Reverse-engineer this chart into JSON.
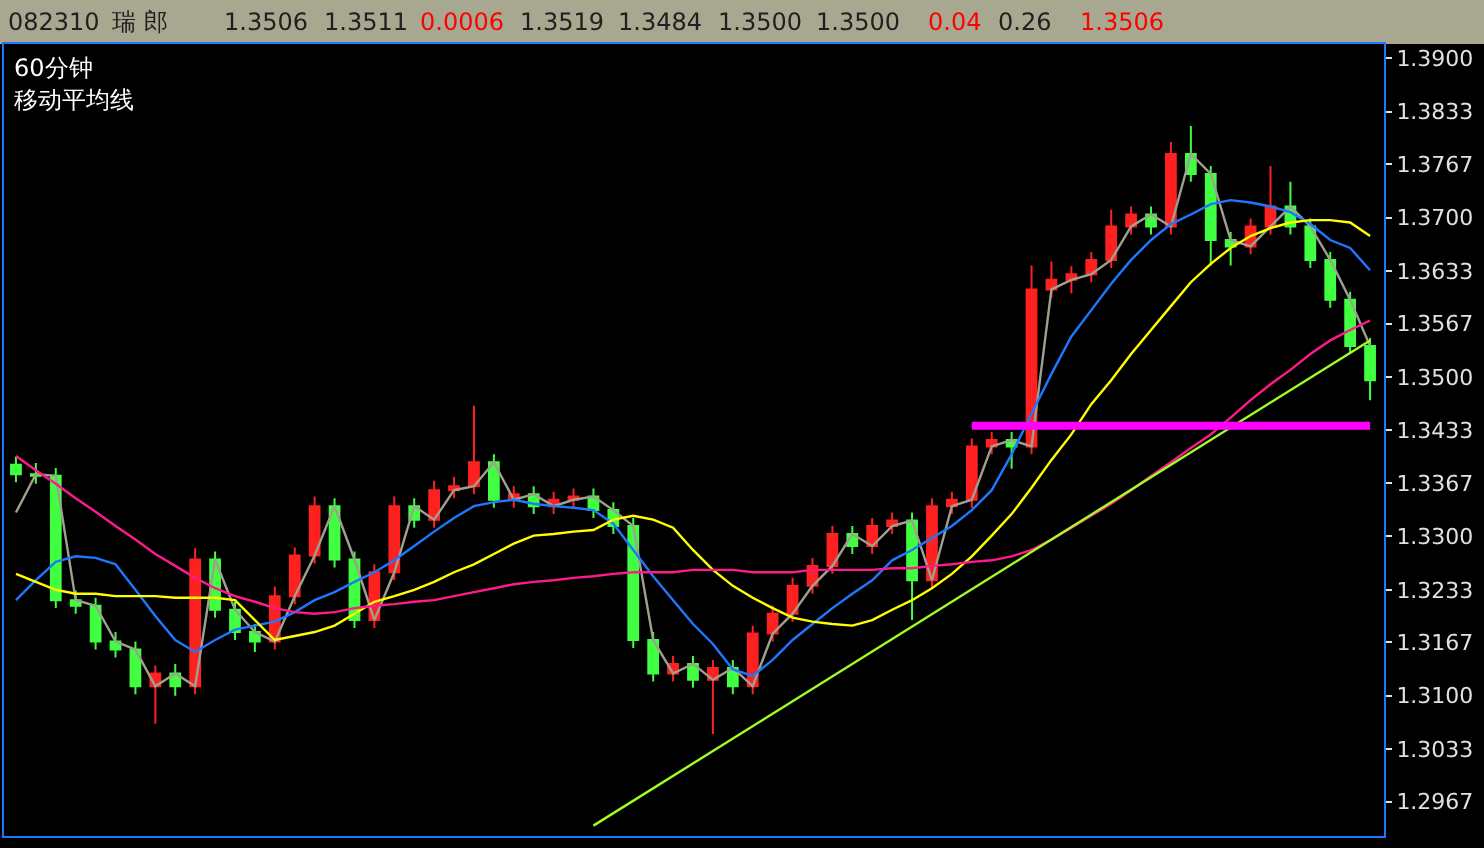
{
  "chart_data": {
    "type": "candlestick",
    "title": "60分钟",
    "subtitle": "移动平均线",
    "annotations": [
      "082310",
      "瑞 郎",
      "1.3506",
      "1.3511",
      "0.0006",
      "1.3519",
      "1.3484",
      "1.3500",
      "1.3500",
      "0.04",
      "0.26",
      "1.3506"
    ],
    "categories": [
      null,
      null,
      null,
      null,
      null,
      null,
      null,
      null,
      null,
      null,
      null,
      null,
      null,
      null,
      null,
      null,
      null,
      null,
      null,
      null,
      null,
      null,
      null,
      null,
      null,
      null,
      null,
      null,
      null,
      null,
      null,
      null,
      null,
      null,
      null,
      null,
      null,
      null,
      null,
      null,
      null,
      null,
      null,
      null,
      null,
      null,
      null,
      null,
      null,
      null,
      null,
      null,
      null,
      null,
      null,
      null,
      null,
      null,
      null,
      null,
      null,
      null,
      null,
      null,
      null,
      null,
      null,
      null,
      null
    ],
    "colors": [
      "#40ff40",
      "#40ff40",
      "#40ff40",
      "#40ff40",
      "#40ff40",
      "#40ff40",
      "#40ff40",
      "#ff2020",
      "#40ff40",
      "#ff2020",
      "#40ff40",
      "#40ff40",
      "#40ff40",
      "#ff2020",
      "#ff2020",
      "#ff2020",
      "#40ff40",
      "#40ff40",
      "#ff2020",
      "#ff2020",
      "#40ff40",
      "#ff2020",
      "#ff2020",
      "#ff2020",
      "#40ff40",
      "#ff2020",
      "#40ff40",
      "#ff2020",
      "#ff2020",
      "#40ff40",
      "#40ff40",
      "#40ff40",
      "#40ff40",
      "#ff2020",
      "#40ff40",
      "#ff2020",
      "#40ff40",
      "#ff2020",
      "#ff2020",
      "#ff2020",
      "#ff2020",
      "#ff2020",
      "#40ff40",
      "#ff2020",
      "#ff2020",
      "#40ff40",
      "#ff2020",
      "#ff2020",
      "#ff2020",
      "#ff2020",
      "#40ff40",
      "#ff2020",
      "#ff2020",
      "#ff2020",
      "#ff2020",
      "#ff2020",
      "#ff2020",
      "#40ff40",
      "#ff2020",
      "#40ff40",
      "#40ff40",
      "#40ff40",
      "#ff2020",
      "#ff2020",
      "#40ff40",
      "#40ff40",
      "#40ff40",
      "#40ff40",
      "#40ff40"
    ],
    "ohlc": [
      [
        1.339,
        1.34,
        1.3368,
        1.3378
      ],
      [
        1.3378,
        1.3392,
        1.3366,
        1.3376
      ],
      [
        1.3376,
        1.3386,
        1.321,
        1.322
      ],
      [
        1.322,
        1.3232,
        1.3203,
        1.3213
      ],
      [
        1.3213,
        1.3223,
        1.3158,
        1.3168
      ],
      [
        1.3168,
        1.318,
        1.3148,
        1.3158
      ],
      [
        1.3158,
        1.3168,
        1.3102,
        1.3112
      ],
      [
        1.3112,
        1.3138,
        1.3065,
        1.3128
      ],
      [
        1.3128,
        1.314,
        1.31,
        1.3112
      ],
      [
        1.3112,
        1.3285,
        1.3102,
        1.3271
      ],
      [
        1.3271,
        1.3281,
        1.3198,
        1.3208
      ],
      [
        1.3208,
        1.3218,
        1.317,
        1.318
      ],
      [
        1.318,
        1.319,
        1.3155,
        1.3168
      ],
      [
        1.3168,
        1.3237,
        1.3158,
        1.3225
      ],
      [
        1.3225,
        1.3286,
        1.3215,
        1.3276
      ],
      [
        1.3276,
        1.335,
        1.3266,
        1.3338
      ],
      [
        1.3338,
        1.3348,
        1.3261,
        1.3271
      ],
      [
        1.3271,
        1.3281,
        1.3185,
        1.3195
      ],
      [
        1.3195,
        1.3265,
        1.3185,
        1.3255
      ],
      [
        1.3255,
        1.335,
        1.3245,
        1.3338
      ],
      [
        1.3338,
        1.3348,
        1.3311,
        1.3321
      ],
      [
        1.3321,
        1.337,
        1.3311,
        1.3358
      ],
      [
        1.3358,
        1.3375,
        1.3348,
        1.3363
      ],
      [
        1.3363,
        1.3464,
        1.3353,
        1.3393
      ],
      [
        1.3393,
        1.3403,
        1.3336,
        1.3346
      ],
      [
        1.3346,
        1.3363,
        1.3336,
        1.3353
      ],
      [
        1.3353,
        1.3363,
        1.3328,
        1.3338
      ],
      [
        1.3338,
        1.3356,
        1.3328,
        1.3346
      ],
      [
        1.3346,
        1.336,
        1.3336,
        1.335
      ],
      [
        1.335,
        1.336,
        1.3323,
        1.3333
      ],
      [
        1.3333,
        1.3343,
        1.3303,
        1.3313
      ],
      [
        1.3313,
        1.3323,
        1.316,
        1.317
      ],
      [
        1.317,
        1.318,
        1.3118,
        1.3128
      ],
      [
        1.3128,
        1.315,
        1.3118,
        1.314
      ],
      [
        1.314,
        1.315,
        1.311,
        1.312
      ],
      [
        1.312,
        1.3145,
        1.3052,
        1.3135
      ],
      [
        1.3135,
        1.3145,
        1.3102,
        1.3112
      ],
      [
        1.3112,
        1.3188,
        1.3102,
        1.3178
      ],
      [
        1.3178,
        1.3213,
        1.3168,
        1.3203
      ],
      [
        1.3203,
        1.3248,
        1.3193,
        1.3238
      ],
      [
        1.3238,
        1.3273,
        1.3228,
        1.3263
      ],
      [
        1.3263,
        1.3313,
        1.3253,
        1.3303
      ],
      [
        1.3303,
        1.3313,
        1.3278,
        1.3288
      ],
      [
        1.3288,
        1.3323,
        1.3278,
        1.3313
      ],
      [
        1.3313,
        1.333,
        1.3303,
        1.332
      ],
      [
        1.332,
        1.333,
        1.3195,
        1.3245
      ],
      [
        1.3245,
        1.3348,
        1.3235,
        1.3338
      ],
      [
        1.3338,
        1.3356,
        1.3328,
        1.3346
      ],
      [
        1.3346,
        1.3423,
        1.3336,
        1.3413
      ],
      [
        1.3413,
        1.3431,
        1.3403,
        1.3421
      ],
      [
        1.3421,
        1.3431,
        1.3385,
        1.3413
      ],
      [
        1.3413,
        1.364,
        1.3403,
        1.361
      ],
      [
        1.361,
        1.3645,
        1.36,
        1.3622
      ],
      [
        1.3622,
        1.3639,
        1.3605,
        1.3629
      ],
      [
        1.3629,
        1.3657,
        1.3619,
        1.3647
      ],
      [
        1.3647,
        1.371,
        1.3637,
        1.3689
      ],
      [
        1.3689,
        1.3714,
        1.3679,
        1.3704
      ],
      [
        1.3704,
        1.3714,
        1.3679,
        1.3689
      ],
      [
        1.3689,
        1.3795,
        1.3679,
        1.378
      ],
      [
        1.378,
        1.3815,
        1.3745,
        1.3755
      ],
      [
        1.3755,
        1.3765,
        1.364,
        1.3672
      ],
      [
        1.3672,
        1.3682,
        1.364,
        1.3664
      ],
      [
        1.3664,
        1.3699,
        1.3654,
        1.3689
      ],
      [
        1.3689,
        1.3765,
        1.3679,
        1.3714
      ],
      [
        1.3714,
        1.3745,
        1.3679,
        1.3689
      ],
      [
        1.3689,
        1.3699,
        1.3637,
        1.3647
      ],
      [
        1.3647,
        1.3657,
        1.3587,
        1.3597
      ],
      [
        1.3597,
        1.3607,
        1.3529,
        1.3539
      ],
      [
        1.3539,
        1.3549,
        1.3471,
        1.3496
      ]
    ],
    "series": [
      {
        "type": "line",
        "color": "#a0a090",
        "values": [
          1.333,
          1.3378,
          1.3376,
          1.322,
          1.3213,
          1.3168,
          1.3158,
          1.3112,
          1.3128,
          1.3112,
          1.3271,
          1.3208,
          1.318,
          1.3168,
          1.3225,
          1.3276,
          1.3338,
          1.3271,
          1.3195,
          1.3255,
          1.3338,
          1.3321,
          1.3358,
          1.3363,
          1.3393,
          1.3346,
          1.3353,
          1.3338,
          1.3346,
          1.335,
          1.3333,
          1.3313,
          1.317,
          1.3128,
          1.314,
          1.312,
          1.3135,
          1.3112,
          1.3178,
          1.3203,
          1.3238,
          1.3263,
          1.3303,
          1.3288,
          1.3313,
          1.332,
          1.3245,
          1.3338,
          1.3346,
          1.3413,
          1.3421,
          1.3413,
          1.361,
          1.3622,
          1.3629,
          1.3647,
          1.3689,
          1.3704,
          1.3689,
          1.378,
          1.3755,
          1.3672,
          1.3664,
          1.3689,
          1.3714,
          1.3689,
          1.3647,
          1.3597,
          1.3539
        ]
      },
      {
        "type": "line",
        "color": "#1e78ff",
        "values": [
          1.322,
          1.3245,
          1.3268,
          1.3275,
          1.3273,
          1.3265,
          1.3233,
          1.32,
          1.317,
          1.3155,
          1.317,
          1.3183,
          1.3188,
          1.3193,
          1.3205,
          1.322,
          1.323,
          1.3243,
          1.3255,
          1.327,
          1.3288,
          1.3306,
          1.3323,
          1.3338,
          1.3343,
          1.3346,
          1.3341,
          1.3338,
          1.3336,
          1.3333,
          1.3316,
          1.3283,
          1.325,
          1.322,
          1.319,
          1.3165,
          1.3133,
          1.3125,
          1.3145,
          1.317,
          1.319,
          1.321,
          1.3228,
          1.3245,
          1.327,
          1.3283,
          1.3298,
          1.3313,
          1.3333,
          1.3358,
          1.3403,
          1.3454,
          1.3504,
          1.3551,
          1.3584,
          1.3617,
          1.3647,
          1.3672,
          1.3692,
          1.3704,
          1.3717,
          1.3722,
          1.3719,
          1.3714,
          1.3707,
          1.3692,
          1.3672,
          1.3662,
          1.3634
        ]
      },
      {
        "type": "line",
        "color": "#ffff00",
        "values": [
          1.3253,
          1.3243,
          1.3233,
          1.3228,
          1.3228,
          1.3225,
          1.3225,
          1.3225,
          1.3223,
          1.3223,
          1.3223,
          1.322,
          1.3195,
          1.317,
          1.3175,
          1.318,
          1.3188,
          1.3203,
          1.3218,
          1.3225,
          1.3233,
          1.3243,
          1.3255,
          1.3265,
          1.3278,
          1.3291,
          1.3301,
          1.3303,
          1.3306,
          1.3308,
          1.3321,
          1.3326,
          1.3321,
          1.3311,
          1.3283,
          1.3258,
          1.3238,
          1.3223,
          1.321,
          1.3198,
          1.3193,
          1.319,
          1.3188,
          1.3195,
          1.3208,
          1.322,
          1.3235,
          1.3253,
          1.3275,
          1.3301,
          1.3328,
          1.3361,
          1.3396,
          1.3428,
          1.3466,
          1.3496,
          1.3529,
          1.3559,
          1.3589,
          1.3619,
          1.3642,
          1.3662,
          1.3677,
          1.3687,
          1.3694,
          1.3697,
          1.3697,
          1.3694,
          1.3677
        ]
      },
      {
        "type": "line",
        "color": "#ff1a8c",
        "values": [
          1.3401,
          1.3383,
          1.3366,
          1.3348,
          1.3331,
          1.3313,
          1.3296,
          1.3278,
          1.3263,
          1.3248,
          1.3235,
          1.3225,
          1.3218,
          1.321,
          1.3205,
          1.3203,
          1.3205,
          1.321,
          1.3213,
          1.3215,
          1.3218,
          1.322,
          1.3225,
          1.323,
          1.3235,
          1.324,
          1.3243,
          1.3245,
          1.3248,
          1.325,
          1.3253,
          1.3255,
          1.3255,
          1.3255,
          1.3258,
          1.3258,
          1.3258,
          1.3255,
          1.3255,
          1.3255,
          1.3258,
          1.3258,
          1.3258,
          1.3258,
          1.326,
          1.326,
          1.3263,
          1.3265,
          1.3268,
          1.327,
          1.3275,
          1.3283,
          1.3296,
          1.3311,
          1.3326,
          1.3341,
          1.3358,
          1.3376,
          1.3393,
          1.3411,
          1.3428,
          1.3449,
          1.3471,
          1.3491,
          1.3509,
          1.3529,
          1.3546,
          1.3559,
          1.3571
        ]
      },
      {
        "type": "line",
        "color": "#a0ff20",
        "values": [
          null,
          null,
          null,
          null,
          null,
          null,
          null,
          null,
          null,
          null,
          null,
          null,
          null,
          null,
          null,
          null,
          null,
          null,
          null,
          null,
          null,
          null,
          null,
          null,
          null,
          null,
          null,
          null,
          null,
          1.2937,
          null,
          null,
          null,
          null,
          null,
          null,
          null,
          null,
          null,
          null,
          null,
          null,
          null,
          null,
          null,
          null,
          null,
          null,
          null,
          null,
          null,
          null,
          null,
          null,
          null,
          null,
          null,
          null,
          null,
          null,
          null,
          null,
          null,
          null,
          null,
          null,
          null,
          null,
          1.3546
        ]
      },
      {
        "type": "line",
        "color": "#ff00ff",
        "values": [
          null,
          null,
          null,
          null,
          null,
          null,
          null,
          null,
          null,
          null,
          null,
          null,
          null,
          null,
          null,
          null,
          null,
          null,
          null,
          null,
          null,
          null,
          null,
          null,
          null,
          null,
          null,
          null,
          null,
          null,
          null,
          null,
          null,
          null,
          null,
          null,
          null,
          null,
          null,
          null,
          null,
          null,
          null,
          null,
          null,
          null,
          null,
          null,
          1.3439,
          1.3439,
          1.3439,
          1.3439,
          1.3439,
          1.3439,
          1.3439,
          1.3439,
          1.3439,
          1.3439,
          1.3439,
          1.3439,
          1.3439,
          1.3439,
          1.3439,
          1.3439,
          1.3439,
          1.3439,
          1.3439,
          1.3439,
          1.3439
        ]
      }
    ],
    "ylim": [
      1.2924,
      1.3918
    ],
    "yticks": [
      {
        "value": 1.39,
        "label": "1.3900"
      },
      1.3833,
      1.3767,
      {
        "value": 1.37,
        "label": "1.3700"
      },
      1.3633,
      1.3567,
      {
        "value": 1.35,
        "label": "1.3500"
      },
      1.3433,
      1.3367,
      {
        "value": 1.33,
        "label": "1.3300"
      },
      1.3233,
      1.3167,
      {
        "value": 1.31,
        "label": "1.3100"
      },
      1.3033,
      1.2967
    ],
    "tick_labels": "y",
    "grid": false
  }
}
